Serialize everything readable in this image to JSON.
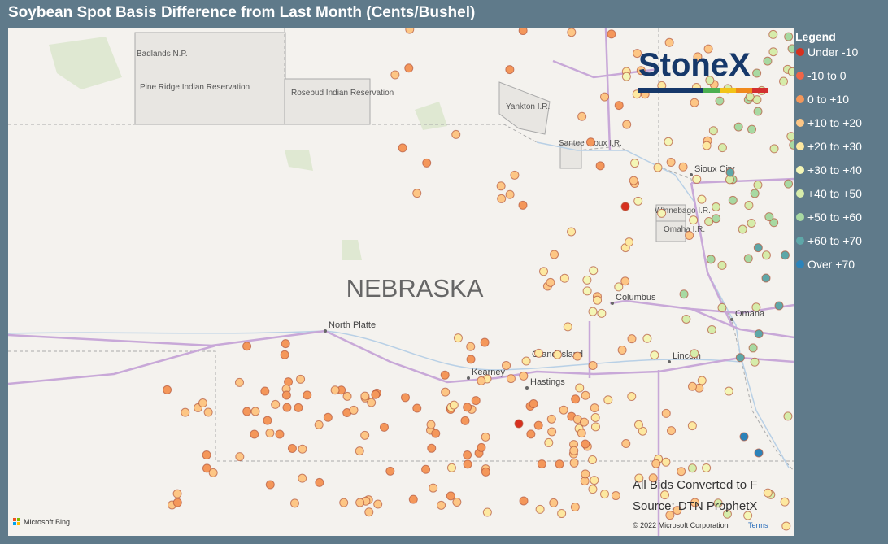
{
  "header": {
    "title": "Soybean Spot Basis Difference from Last Month (Cents/Bushel)"
  },
  "legend": {
    "title": "Legend",
    "items": [
      {
        "label": "Under -10",
        "color": "#d7301f"
      },
      {
        "label": "-10 to 0",
        "color": "#ef6548"
      },
      {
        "label": "0 to +10",
        "color": "#f4975a"
      },
      {
        "label": "+10 to +20",
        "color": "#fdc685"
      },
      {
        "label": "+20 to +30",
        "color": "#fde8a0"
      },
      {
        "label": "+30 to +40",
        "color": "#f4f6b6"
      },
      {
        "label": "+40 to +50",
        "color": "#d6ecaa"
      },
      {
        "label": "+50 to +60",
        "color": "#a8d9a2"
      },
      {
        "label": "+60 to +70",
        "color": "#5ea7a8"
      },
      {
        "label": "Over +70",
        "color": "#2b83ba"
      }
    ]
  },
  "map": {
    "state_label": "NEBRASKA",
    "places": [
      "North Platte",
      "Kearney",
      "Grand Island",
      "Hastings",
      "Columbus",
      "Omaha",
      "Lincoln",
      "Sioux City"
    ],
    "areas": [
      "Badlands N.P.",
      "Pine Ridge Indian Reservation",
      "Rosebud Indian Reservation",
      "Yankton I.R.",
      "Santee Sioux I.R.",
      "Winnebago I.R.",
      "Omaha I.R."
    ],
    "logo": "StoneX",
    "notes": [
      "All Bids Converted to F",
      "Source: DTN ProphetX"
    ],
    "attribution": "© 2022 Microsoft Corporation",
    "terms": "Terms",
    "provider": "Microsoft Bing"
  }
}
